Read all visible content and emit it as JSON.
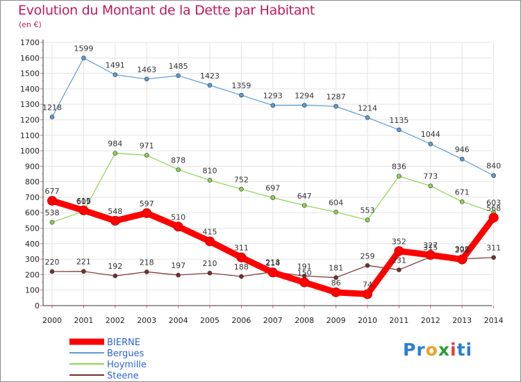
{
  "chart_data": {
    "type": "line",
    "title": "Evolution du Montant de la Dette par Habitant",
    "subtitle": "(en €)",
    "x": [
      "2000",
      "2001",
      "2002",
      "2003",
      "2004",
      "2005",
      "2006",
      "2007",
      "2008",
      "2009",
      "2010",
      "2011",
      "2012",
      "2013",
      "2014"
    ],
    "ylim": [
      0,
      1700
    ],
    "yticks": [
      0,
      100,
      200,
      300,
      400,
      500,
      600,
      700,
      800,
      900,
      1000,
      1100,
      1200,
      1300,
      1400,
      1500,
      1600,
      1700
    ],
    "grid": true,
    "legend_position": "bottom-left",
    "series": [
      {
        "name": "BIERNE",
        "color": "#ff0000",
        "values": [
          677,
          615,
          548,
          597,
          510,
          415,
          311,
          214,
          150,
          86,
          74,
          352,
          327,
          298,
          568
        ]
      },
      {
        "name": "Bergues",
        "color": "#5b9bd5",
        "values": [
          1218,
          1599,
          1491,
          1463,
          1485,
          1423,
          1359,
          1293,
          1294,
          1287,
          1214,
          1135,
          1044,
          946,
          840
        ]
      },
      {
        "name": "Hoymille",
        "color": "#8fd14f",
        "values": [
          538,
          609,
          984,
          971,
          878,
          810,
          752,
          697,
          647,
          604,
          553,
          836,
          773,
          671,
          603
        ]
      },
      {
        "name": "Steene",
        "color": "#7b2c2c",
        "values": [
          220,
          221,
          192,
          218,
          197,
          210,
          188,
          218,
          191,
          181,
          259,
          231,
          315,
          302,
          311
        ]
      }
    ]
  }
}
